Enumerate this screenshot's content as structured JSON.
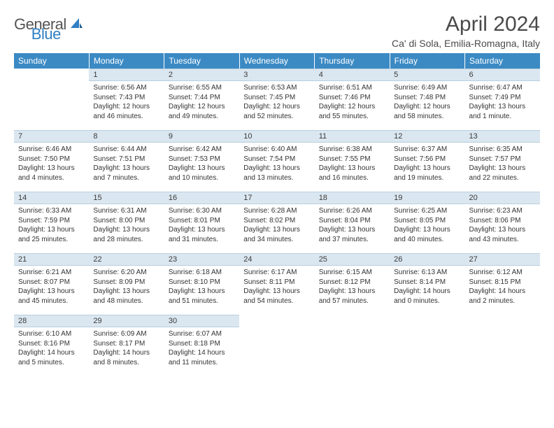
{
  "brand": {
    "text_gray": "General",
    "text_blue": "Blue"
  },
  "title": "April 2024",
  "location": "Ca' di Sola, Emilia-Romagna, Italy",
  "day_headers": [
    "Sunday",
    "Monday",
    "Tuesday",
    "Wednesday",
    "Thursday",
    "Friday",
    "Saturday"
  ],
  "colors": {
    "header_bg": "#3b8ac4",
    "daynum_bg": "#dbe7f0",
    "text": "#333333"
  },
  "weeks": [
    [
      {
        "n": "",
        "lines": []
      },
      {
        "n": "1",
        "lines": [
          "Sunrise: 6:56 AM",
          "Sunset: 7:43 PM",
          "Daylight: 12 hours and 46 minutes."
        ]
      },
      {
        "n": "2",
        "lines": [
          "Sunrise: 6:55 AM",
          "Sunset: 7:44 PM",
          "Daylight: 12 hours and 49 minutes."
        ]
      },
      {
        "n": "3",
        "lines": [
          "Sunrise: 6:53 AM",
          "Sunset: 7:45 PM",
          "Daylight: 12 hours and 52 minutes."
        ]
      },
      {
        "n": "4",
        "lines": [
          "Sunrise: 6:51 AM",
          "Sunset: 7:46 PM",
          "Daylight: 12 hours and 55 minutes."
        ]
      },
      {
        "n": "5",
        "lines": [
          "Sunrise: 6:49 AM",
          "Sunset: 7:48 PM",
          "Daylight: 12 hours and 58 minutes."
        ]
      },
      {
        "n": "6",
        "lines": [
          "Sunrise: 6:47 AM",
          "Sunset: 7:49 PM",
          "Daylight: 13 hours and 1 minute."
        ]
      }
    ],
    [
      {
        "n": "7",
        "lines": [
          "Sunrise: 6:46 AM",
          "Sunset: 7:50 PM",
          "Daylight: 13 hours and 4 minutes."
        ]
      },
      {
        "n": "8",
        "lines": [
          "Sunrise: 6:44 AM",
          "Sunset: 7:51 PM",
          "Daylight: 13 hours and 7 minutes."
        ]
      },
      {
        "n": "9",
        "lines": [
          "Sunrise: 6:42 AM",
          "Sunset: 7:53 PM",
          "Daylight: 13 hours and 10 minutes."
        ]
      },
      {
        "n": "10",
        "lines": [
          "Sunrise: 6:40 AM",
          "Sunset: 7:54 PM",
          "Daylight: 13 hours and 13 minutes."
        ]
      },
      {
        "n": "11",
        "lines": [
          "Sunrise: 6:38 AM",
          "Sunset: 7:55 PM",
          "Daylight: 13 hours and 16 minutes."
        ]
      },
      {
        "n": "12",
        "lines": [
          "Sunrise: 6:37 AM",
          "Sunset: 7:56 PM",
          "Daylight: 13 hours and 19 minutes."
        ]
      },
      {
        "n": "13",
        "lines": [
          "Sunrise: 6:35 AM",
          "Sunset: 7:57 PM",
          "Daylight: 13 hours and 22 minutes."
        ]
      }
    ],
    [
      {
        "n": "14",
        "lines": [
          "Sunrise: 6:33 AM",
          "Sunset: 7:59 PM",
          "Daylight: 13 hours and 25 minutes."
        ]
      },
      {
        "n": "15",
        "lines": [
          "Sunrise: 6:31 AM",
          "Sunset: 8:00 PM",
          "Daylight: 13 hours and 28 minutes."
        ]
      },
      {
        "n": "16",
        "lines": [
          "Sunrise: 6:30 AM",
          "Sunset: 8:01 PM",
          "Daylight: 13 hours and 31 minutes."
        ]
      },
      {
        "n": "17",
        "lines": [
          "Sunrise: 6:28 AM",
          "Sunset: 8:02 PM",
          "Daylight: 13 hours and 34 minutes."
        ]
      },
      {
        "n": "18",
        "lines": [
          "Sunrise: 6:26 AM",
          "Sunset: 8:04 PM",
          "Daylight: 13 hours and 37 minutes."
        ]
      },
      {
        "n": "19",
        "lines": [
          "Sunrise: 6:25 AM",
          "Sunset: 8:05 PM",
          "Daylight: 13 hours and 40 minutes."
        ]
      },
      {
        "n": "20",
        "lines": [
          "Sunrise: 6:23 AM",
          "Sunset: 8:06 PM",
          "Daylight: 13 hours and 43 minutes."
        ]
      }
    ],
    [
      {
        "n": "21",
        "lines": [
          "Sunrise: 6:21 AM",
          "Sunset: 8:07 PM",
          "Daylight: 13 hours and 45 minutes."
        ]
      },
      {
        "n": "22",
        "lines": [
          "Sunrise: 6:20 AM",
          "Sunset: 8:09 PM",
          "Daylight: 13 hours and 48 minutes."
        ]
      },
      {
        "n": "23",
        "lines": [
          "Sunrise: 6:18 AM",
          "Sunset: 8:10 PM",
          "Daylight: 13 hours and 51 minutes."
        ]
      },
      {
        "n": "24",
        "lines": [
          "Sunrise: 6:17 AM",
          "Sunset: 8:11 PM",
          "Daylight: 13 hours and 54 minutes."
        ]
      },
      {
        "n": "25",
        "lines": [
          "Sunrise: 6:15 AM",
          "Sunset: 8:12 PM",
          "Daylight: 13 hours and 57 minutes."
        ]
      },
      {
        "n": "26",
        "lines": [
          "Sunrise: 6:13 AM",
          "Sunset: 8:14 PM",
          "Daylight: 14 hours and 0 minutes."
        ]
      },
      {
        "n": "27",
        "lines": [
          "Sunrise: 6:12 AM",
          "Sunset: 8:15 PM",
          "Daylight: 14 hours and 2 minutes."
        ]
      }
    ],
    [
      {
        "n": "28",
        "lines": [
          "Sunrise: 6:10 AM",
          "Sunset: 8:16 PM",
          "Daylight: 14 hours and 5 minutes."
        ]
      },
      {
        "n": "29",
        "lines": [
          "Sunrise: 6:09 AM",
          "Sunset: 8:17 PM",
          "Daylight: 14 hours and 8 minutes."
        ]
      },
      {
        "n": "30",
        "lines": [
          "Sunrise: 6:07 AM",
          "Sunset: 8:18 PM",
          "Daylight: 14 hours and 11 minutes."
        ]
      },
      {
        "n": "",
        "lines": []
      },
      {
        "n": "",
        "lines": []
      },
      {
        "n": "",
        "lines": []
      },
      {
        "n": "",
        "lines": []
      }
    ]
  ]
}
